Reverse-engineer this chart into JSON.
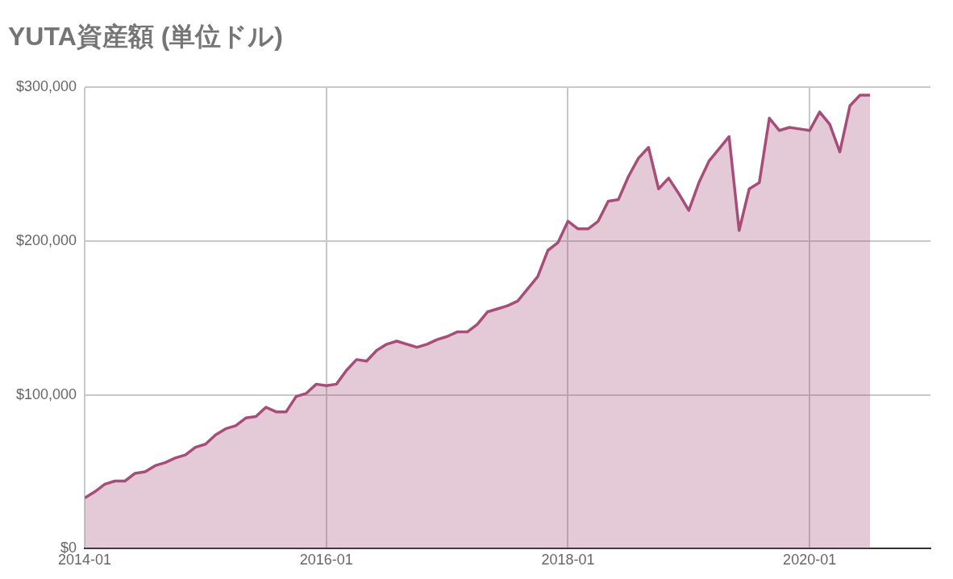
{
  "chart_data": {
    "type": "area",
    "title": "YUTA資産額 (単位ドル)",
    "x": [
      "2014-01",
      "2014-02",
      "2014-03",
      "2014-04",
      "2014-05",
      "2014-06",
      "2014-07",
      "2014-08",
      "2014-09",
      "2014-10",
      "2014-11",
      "2014-12",
      "2015-01",
      "2015-02",
      "2015-03",
      "2015-04",
      "2015-05",
      "2015-06",
      "2015-07",
      "2015-08",
      "2015-09",
      "2015-10",
      "2015-11",
      "2015-12",
      "2016-01",
      "2016-02",
      "2016-03",
      "2016-04",
      "2016-05",
      "2016-06",
      "2016-07",
      "2016-08",
      "2016-09",
      "2016-10",
      "2016-11",
      "2016-12",
      "2017-01",
      "2017-02",
      "2017-03",
      "2017-04",
      "2017-05",
      "2017-06",
      "2017-07",
      "2017-08",
      "2017-09",
      "2017-10",
      "2017-11",
      "2017-12",
      "2018-01",
      "2018-02",
      "2018-03",
      "2018-04",
      "2018-05",
      "2018-06",
      "2018-07",
      "2018-08",
      "2018-09",
      "2018-10",
      "2018-11",
      "2018-12",
      "2019-01",
      "2019-02",
      "2019-03",
      "2019-04",
      "2019-05",
      "2019-06",
      "2019-07",
      "2019-08",
      "2019-09",
      "2019-10",
      "2019-11",
      "2019-12",
      "2020-01",
      "2020-02",
      "2020-03",
      "2020-04",
      "2020-05",
      "2020-06",
      "2020-07"
    ],
    "series": [
      {
        "color": "#a64d79",
        "values": [
          33000,
          37000,
          42000,
          44000,
          44000,
          49000,
          50000,
          54000,
          56000,
          59000,
          61000,
          66000,
          68000,
          74000,
          78000,
          80000,
          85000,
          86000,
          92000,
          89000,
          89000,
          99000,
          101000,
          107000,
          106000,
          107000,
          116000,
          123000,
          122000,
          129000,
          133000,
          135000,
          133000,
          131000,
          133000,
          136000,
          138000,
          141000,
          141000,
          146000,
          154000,
          156000,
          158000,
          161000,
          169000,
          177000,
          194000,
          199000,
          213000,
          208000,
          208000,
          213000,
          226000,
          227000,
          242000,
          254000,
          261000,
          234000,
          241000,
          231000,
          220000,
          238000,
          252000,
          260000,
          268000,
          207000,
          234000,
          238000,
          280000,
          272000,
          274000,
          273000,
          272000,
          284000,
          276000,
          258000,
          288000,
          295000,
          295000
        ]
      }
    ],
    "xlim": [
      "2014-01",
      "2021-01"
    ],
    "xticks": [
      "2014-01",
      "2016-01",
      "2018-01",
      "2020-01"
    ],
    "ylim": [
      0,
      300000
    ],
    "yticks": [
      {
        "value": 0,
        "label": "$0"
      },
      {
        "value": 100000,
        "label": "$100,000"
      },
      {
        "value": 200000,
        "label": "$200,000"
      },
      {
        "value": 300000,
        "label": "$300,000"
      }
    ],
    "grid": true,
    "legend": false
  }
}
